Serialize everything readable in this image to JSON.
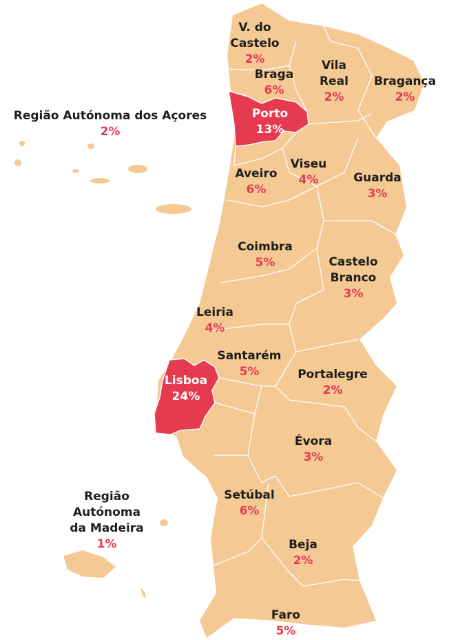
{
  "regions": [
    {
      "name_lines": [
        "V. do",
        "Castelo"
      ],
      "value": 2,
      "value_label": "2%"
    },
    {
      "name_lines": [
        "Braga"
      ],
      "value": 6,
      "value_label": "6%"
    },
    {
      "name_lines": [
        "Vila",
        "Real"
      ],
      "value": 2,
      "value_label": "2%"
    },
    {
      "name_lines": [
        "Bragança"
      ],
      "value": 2,
      "value_label": "2%"
    },
    {
      "name_lines": [
        "Porto"
      ],
      "value": 13,
      "value_label": "13%",
      "highlighted": true
    },
    {
      "name_lines": [
        "Região Autónoma dos Açores"
      ],
      "value": 2,
      "value_label": "2%"
    },
    {
      "name_lines": [
        "Aveiro"
      ],
      "value": 6,
      "value_label": "6%"
    },
    {
      "name_lines": [
        "Viseu"
      ],
      "value": 4,
      "value_label": "4%"
    },
    {
      "name_lines": [
        "Guarda"
      ],
      "value": 3,
      "value_label": "3%"
    },
    {
      "name_lines": [
        "Coimbra"
      ],
      "value": 5,
      "value_label": "5%"
    },
    {
      "name_lines": [
        "Castelo",
        "Branco"
      ],
      "value": 3,
      "value_label": "3%"
    },
    {
      "name_lines": [
        "Leiria"
      ],
      "value": 4,
      "value_label": "4%"
    },
    {
      "name_lines": [
        "Santarém"
      ],
      "value": 5,
      "value_label": "5%"
    },
    {
      "name_lines": [
        "Lisboa"
      ],
      "value": 24,
      "value_label": "24%",
      "highlighted": true
    },
    {
      "name_lines": [
        "Portalegre"
      ],
      "value": 2,
      "value_label": "2%"
    },
    {
      "name_lines": [
        "Évora"
      ],
      "value": 3,
      "value_label": "3%"
    },
    {
      "name_lines": [
        "Setúbal"
      ],
      "value": 6,
      "value_label": "6%"
    },
    {
      "name_lines": [
        "Região",
        "Autónoma",
        "da Madeira"
      ],
      "value": 1,
      "value_label": "1%"
    },
    {
      "name_lines": [
        "Beja"
      ],
      "value": 2,
      "value_label": "2%"
    },
    {
      "name_lines": [
        "Faro"
      ],
      "value": 5,
      "value_label": "5%"
    }
  ]
}
